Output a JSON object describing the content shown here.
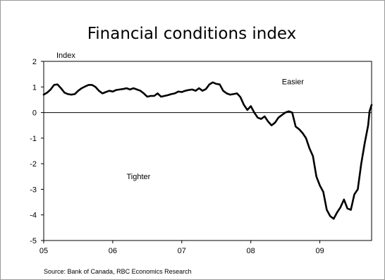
{
  "chart_data": {
    "type": "line",
    "title": "Financial conditions index",
    "ylabel": "Index",
    "xlabel": "",
    "ylim": [
      -5,
      2
    ],
    "xlim": [
      2005.0,
      2009.75
    ],
    "yticks": [
      2,
      1,
      0,
      -1,
      -2,
      -3,
      -4,
      -5
    ],
    "xticks": [
      {
        "label": "05",
        "x": 2005.0
      },
      {
        "label": "06",
        "x": 2006.0
      },
      {
        "label": "07",
        "x": 2007.0
      },
      {
        "label": "08",
        "x": 2008.0
      },
      {
        "label": "09",
        "x": 2009.0
      }
    ],
    "annotations": [
      {
        "text": "Easier",
        "x": 2008.45,
        "y": 1.1
      },
      {
        "text": "Tighter",
        "x": 2006.2,
        "y": -2.6
      }
    ],
    "source": "Source: Bank of Canada, RBC Economics Research",
    "grid": false,
    "series": [
      {
        "values": [
          [
            2005.0,
            0.7
          ],
          [
            2005.05,
            0.78
          ],
          [
            2005.1,
            0.9
          ],
          [
            2005.15,
            1.08
          ],
          [
            2005.2,
            1.1
          ],
          [
            2005.25,
            0.95
          ],
          [
            2005.3,
            0.78
          ],
          [
            2005.35,
            0.72
          ],
          [
            2005.4,
            0.7
          ],
          [
            2005.45,
            0.72
          ],
          [
            2005.5,
            0.85
          ],
          [
            2005.55,
            0.95
          ],
          [
            2005.6,
            1.02
          ],
          [
            2005.65,
            1.08
          ],
          [
            2005.7,
            1.08
          ],
          [
            2005.75,
            1.0
          ],
          [
            2005.8,
            0.85
          ],
          [
            2005.85,
            0.75
          ],
          [
            2005.9,
            0.8
          ],
          [
            2005.95,
            0.85
          ],
          [
            2006.0,
            0.82
          ],
          [
            2006.05,
            0.88
          ],
          [
            2006.1,
            0.9
          ],
          [
            2006.15,
            0.92
          ],
          [
            2006.2,
            0.95
          ],
          [
            2006.25,
            0.9
          ],
          [
            2006.3,
            0.95
          ],
          [
            2006.35,
            0.9
          ],
          [
            2006.4,
            0.85
          ],
          [
            2006.45,
            0.75
          ],
          [
            2006.5,
            0.62
          ],
          [
            2006.55,
            0.65
          ],
          [
            2006.6,
            0.65
          ],
          [
            2006.65,
            0.75
          ],
          [
            2006.7,
            0.62
          ],
          [
            2006.75,
            0.65
          ],
          [
            2006.8,
            0.68
          ],
          [
            2006.85,
            0.72
          ],
          [
            2006.9,
            0.75
          ],
          [
            2006.95,
            0.82
          ],
          [
            2007.0,
            0.8
          ],
          [
            2007.05,
            0.85
          ],
          [
            2007.1,
            0.88
          ],
          [
            2007.15,
            0.9
          ],
          [
            2007.2,
            0.85
          ],
          [
            2007.25,
            0.95
          ],
          [
            2007.3,
            0.85
          ],
          [
            2007.35,
            0.92
          ],
          [
            2007.4,
            1.1
          ],
          [
            2007.45,
            1.18
          ],
          [
            2007.5,
            1.12
          ],
          [
            2007.55,
            1.1
          ],
          [
            2007.6,
            0.85
          ],
          [
            2007.65,
            0.75
          ],
          [
            2007.7,
            0.7
          ],
          [
            2007.75,
            0.72
          ],
          [
            2007.8,
            0.75
          ],
          [
            2007.85,
            0.6
          ],
          [
            2007.9,
            0.3
          ],
          [
            2007.95,
            0.1
          ],
          [
            2008.0,
            0.25
          ],
          [
            2008.05,
            0.0
          ],
          [
            2008.1,
            -0.2
          ],
          [
            2008.15,
            -0.25
          ],
          [
            2008.2,
            -0.15
          ],
          [
            2008.25,
            -0.35
          ],
          [
            2008.3,
            -0.5
          ],
          [
            2008.35,
            -0.4
          ],
          [
            2008.4,
            -0.2
          ],
          [
            2008.45,
            -0.1
          ],
          [
            2008.5,
            0.0
          ],
          [
            2008.55,
            0.05
          ],
          [
            2008.6,
            0.0
          ],
          [
            2008.65,
            -0.55
          ],
          [
            2008.7,
            -0.65
          ],
          [
            2008.75,
            -0.8
          ],
          [
            2008.8,
            -1.0
          ],
          [
            2008.85,
            -1.4
          ],
          [
            2008.9,
            -1.7
          ],
          [
            2008.95,
            -2.5
          ],
          [
            2009.0,
            -2.85
          ],
          [
            2009.05,
            -3.1
          ],
          [
            2009.1,
            -3.8
          ],
          [
            2009.15,
            -4.05
          ],
          [
            2009.2,
            -4.15
          ],
          [
            2009.25,
            -3.9
          ],
          [
            2009.3,
            -3.7
          ],
          [
            2009.35,
            -3.4
          ],
          [
            2009.4,
            -3.75
          ],
          [
            2009.45,
            -3.8
          ],
          [
            2009.5,
            -3.2
          ],
          [
            2009.55,
            -3.0
          ],
          [
            2009.6,
            -2.0
          ],
          [
            2009.65,
            -1.2
          ],
          [
            2009.7,
            -0.5
          ],
          [
            2009.72,
            0.05
          ],
          [
            2009.75,
            0.3
          ]
        ]
      }
    ]
  }
}
